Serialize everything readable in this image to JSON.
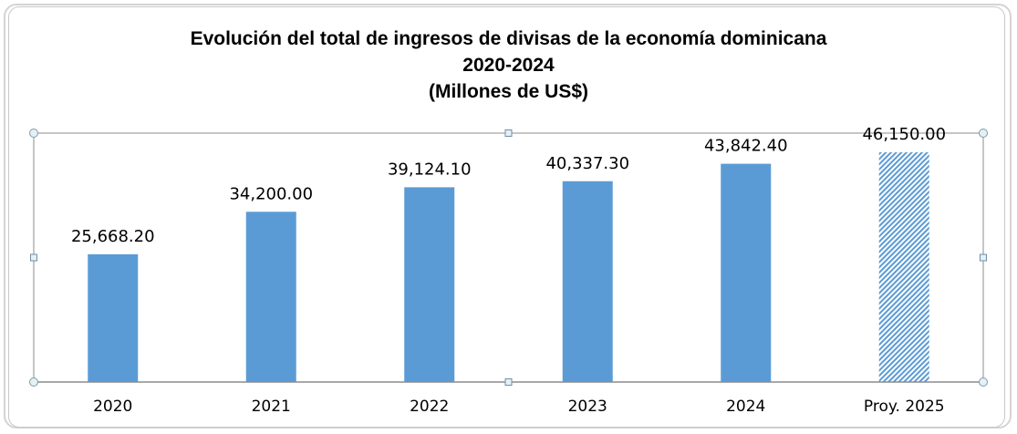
{
  "chart_data": {
    "type": "bar",
    "title": "Evolución del total de ingresos de divisas de la economía dominicana",
    "subtitle_years": "2020-2024",
    "subtitle_units": "(Millones de US$)",
    "categories": [
      "2020",
      "2021",
      "2022",
      "2023",
      "2024",
      "Proy. 2025"
    ],
    "values": [
      25668.2,
      34200.0,
      39124.1,
      40337.3,
      43842.4,
      46150.0
    ],
    "data_labels": [
      "25,668.20",
      "34,200.00",
      "39,124.10",
      "40,337.30",
      "43,842.40",
      "46,150.00"
    ],
    "projected": [
      false,
      false,
      false,
      false,
      false,
      true
    ],
    "xlabel": "",
    "ylabel": "",
    "ylim": [
      0,
      50000
    ],
    "grid": false,
    "colors": {
      "bar": "#5b9bd5",
      "projected_hatch": "#5b9bd5"
    }
  }
}
